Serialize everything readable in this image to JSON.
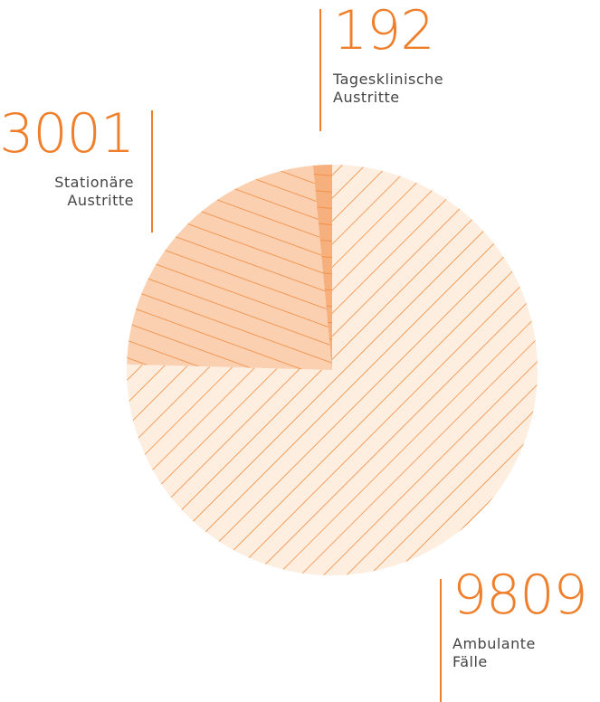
{
  "chart_data": {
    "type": "pie",
    "categories": [
      "Ambulante Fälle",
      "Stationäre Austritte",
      "Tagesklinische Austritte"
    ],
    "values": [
      9809,
      3001,
      192
    ],
    "colors": [
      "#fdeee0",
      "#fbd0b0",
      "#f6b07e"
    ]
  }
}
